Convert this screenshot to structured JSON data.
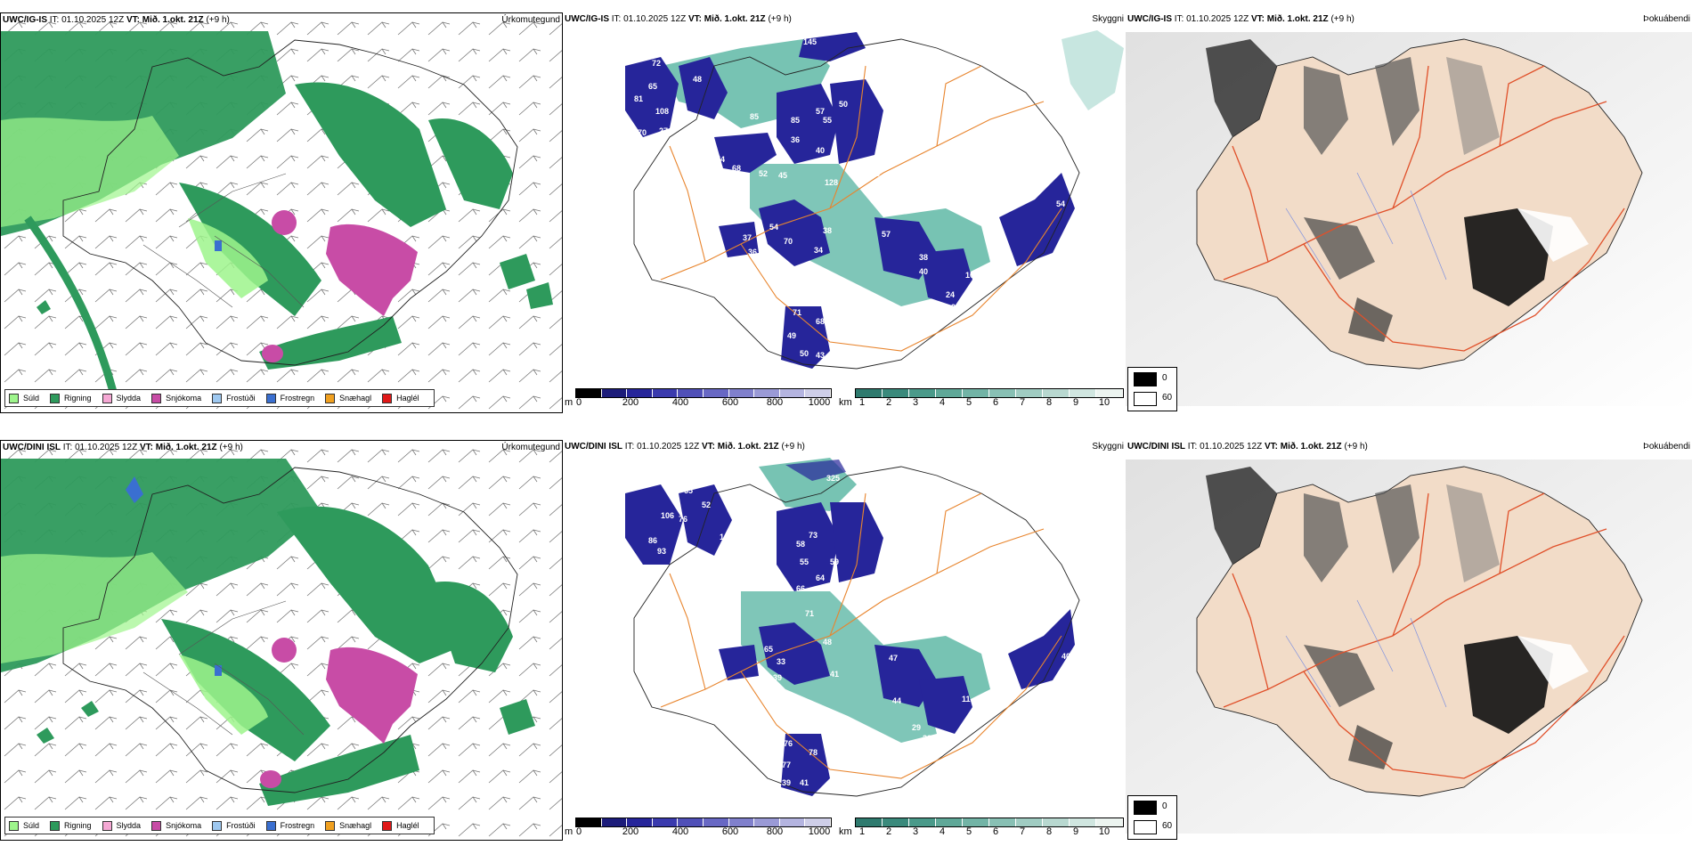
{
  "rows": [
    {
      "model": "UWC/IG-IS",
      "it_label": "IT:",
      "it_value": "01.10.2025 12Z",
      "vt_label": "VT:",
      "vt_value": "Mið. 1.okt. 21Z",
      "lead": "(+9 h)"
    },
    {
      "model": "UWC/DINI ISL",
      "it_label": "IT:",
      "it_value": "01.10.2025 12Z",
      "vt_label": "VT:",
      "vt_value": "Mið. 1.okt. 21Z",
      "lead": "(+9 h)"
    }
  ],
  "panels": {
    "precip": {
      "title": "Úrkomutegund"
    },
    "visibility": {
      "title": "Skyggni"
    },
    "dewpoint": {
      "title": "Þokuábendi"
    }
  },
  "precip_legend": [
    {
      "label": "Súld",
      "color": "#9ef58c"
    },
    {
      "label": "Rigning",
      "color": "#2e9a5c"
    },
    {
      "label": "Slydda",
      "color": "#f5a8d4"
    },
    {
      "label": "Snjókoma",
      "color": "#c84ca6"
    },
    {
      "label": "Frostúði",
      "color": "#9ec8f0"
    },
    {
      "label": "Frostregn",
      "color": "#3a6fd0"
    },
    {
      "label": "Snæhagl",
      "color": "#f0a020"
    },
    {
      "label": "Haglél",
      "color": "#e01818"
    }
  ],
  "vis_m_bar": {
    "unit": "m",
    "ticks": [
      "0",
      "200",
      "400",
      "600",
      "800",
      "1000"
    ]
  },
  "vis_km_bar": {
    "unit": "km",
    "ticks": [
      "1",
      "2",
      "3",
      "4",
      "5",
      "6",
      "7",
      "8",
      "9",
      "10"
    ]
  },
  "dew_legend": {
    "low": "0",
    "high": "60"
  },
  "vis_labels_top": [
    "145",
    "72",
    "48",
    "65",
    "81",
    "108",
    "85",
    "85",
    "57",
    "50",
    "55",
    "40",
    "36",
    "70",
    "27",
    "81",
    "74",
    "68",
    "52",
    "45",
    "128",
    "48",
    "86",
    "61",
    "54",
    "38",
    "37",
    "70",
    "57",
    "34",
    "38",
    "36",
    "40",
    "54",
    "24",
    "23",
    "365",
    "71",
    "68",
    "49",
    "50",
    "43",
    "108",
    "49"
  ],
  "vis_labels_bottom": [
    "325",
    "65",
    "52",
    "106",
    "76",
    "145",
    "58",
    "93",
    "82",
    "59",
    "55",
    "73",
    "86",
    "64",
    "43",
    "66",
    "71",
    "48",
    "47",
    "33",
    "65",
    "41",
    "44",
    "11",
    "40",
    "39",
    "341",
    "29",
    "30",
    "76",
    "78",
    "77",
    "39",
    "41"
  ],
  "colors": {
    "rain": "#2e9a5c",
    "drizzle": "#9ef58c",
    "snow": "#c84ca6",
    "vis_dark": "#26259a",
    "vis_teal": "#5fb8a6",
    "roads": "#e8852e",
    "dew_land": "#f2dcc8",
    "dew_roads": "#e0502a"
  }
}
